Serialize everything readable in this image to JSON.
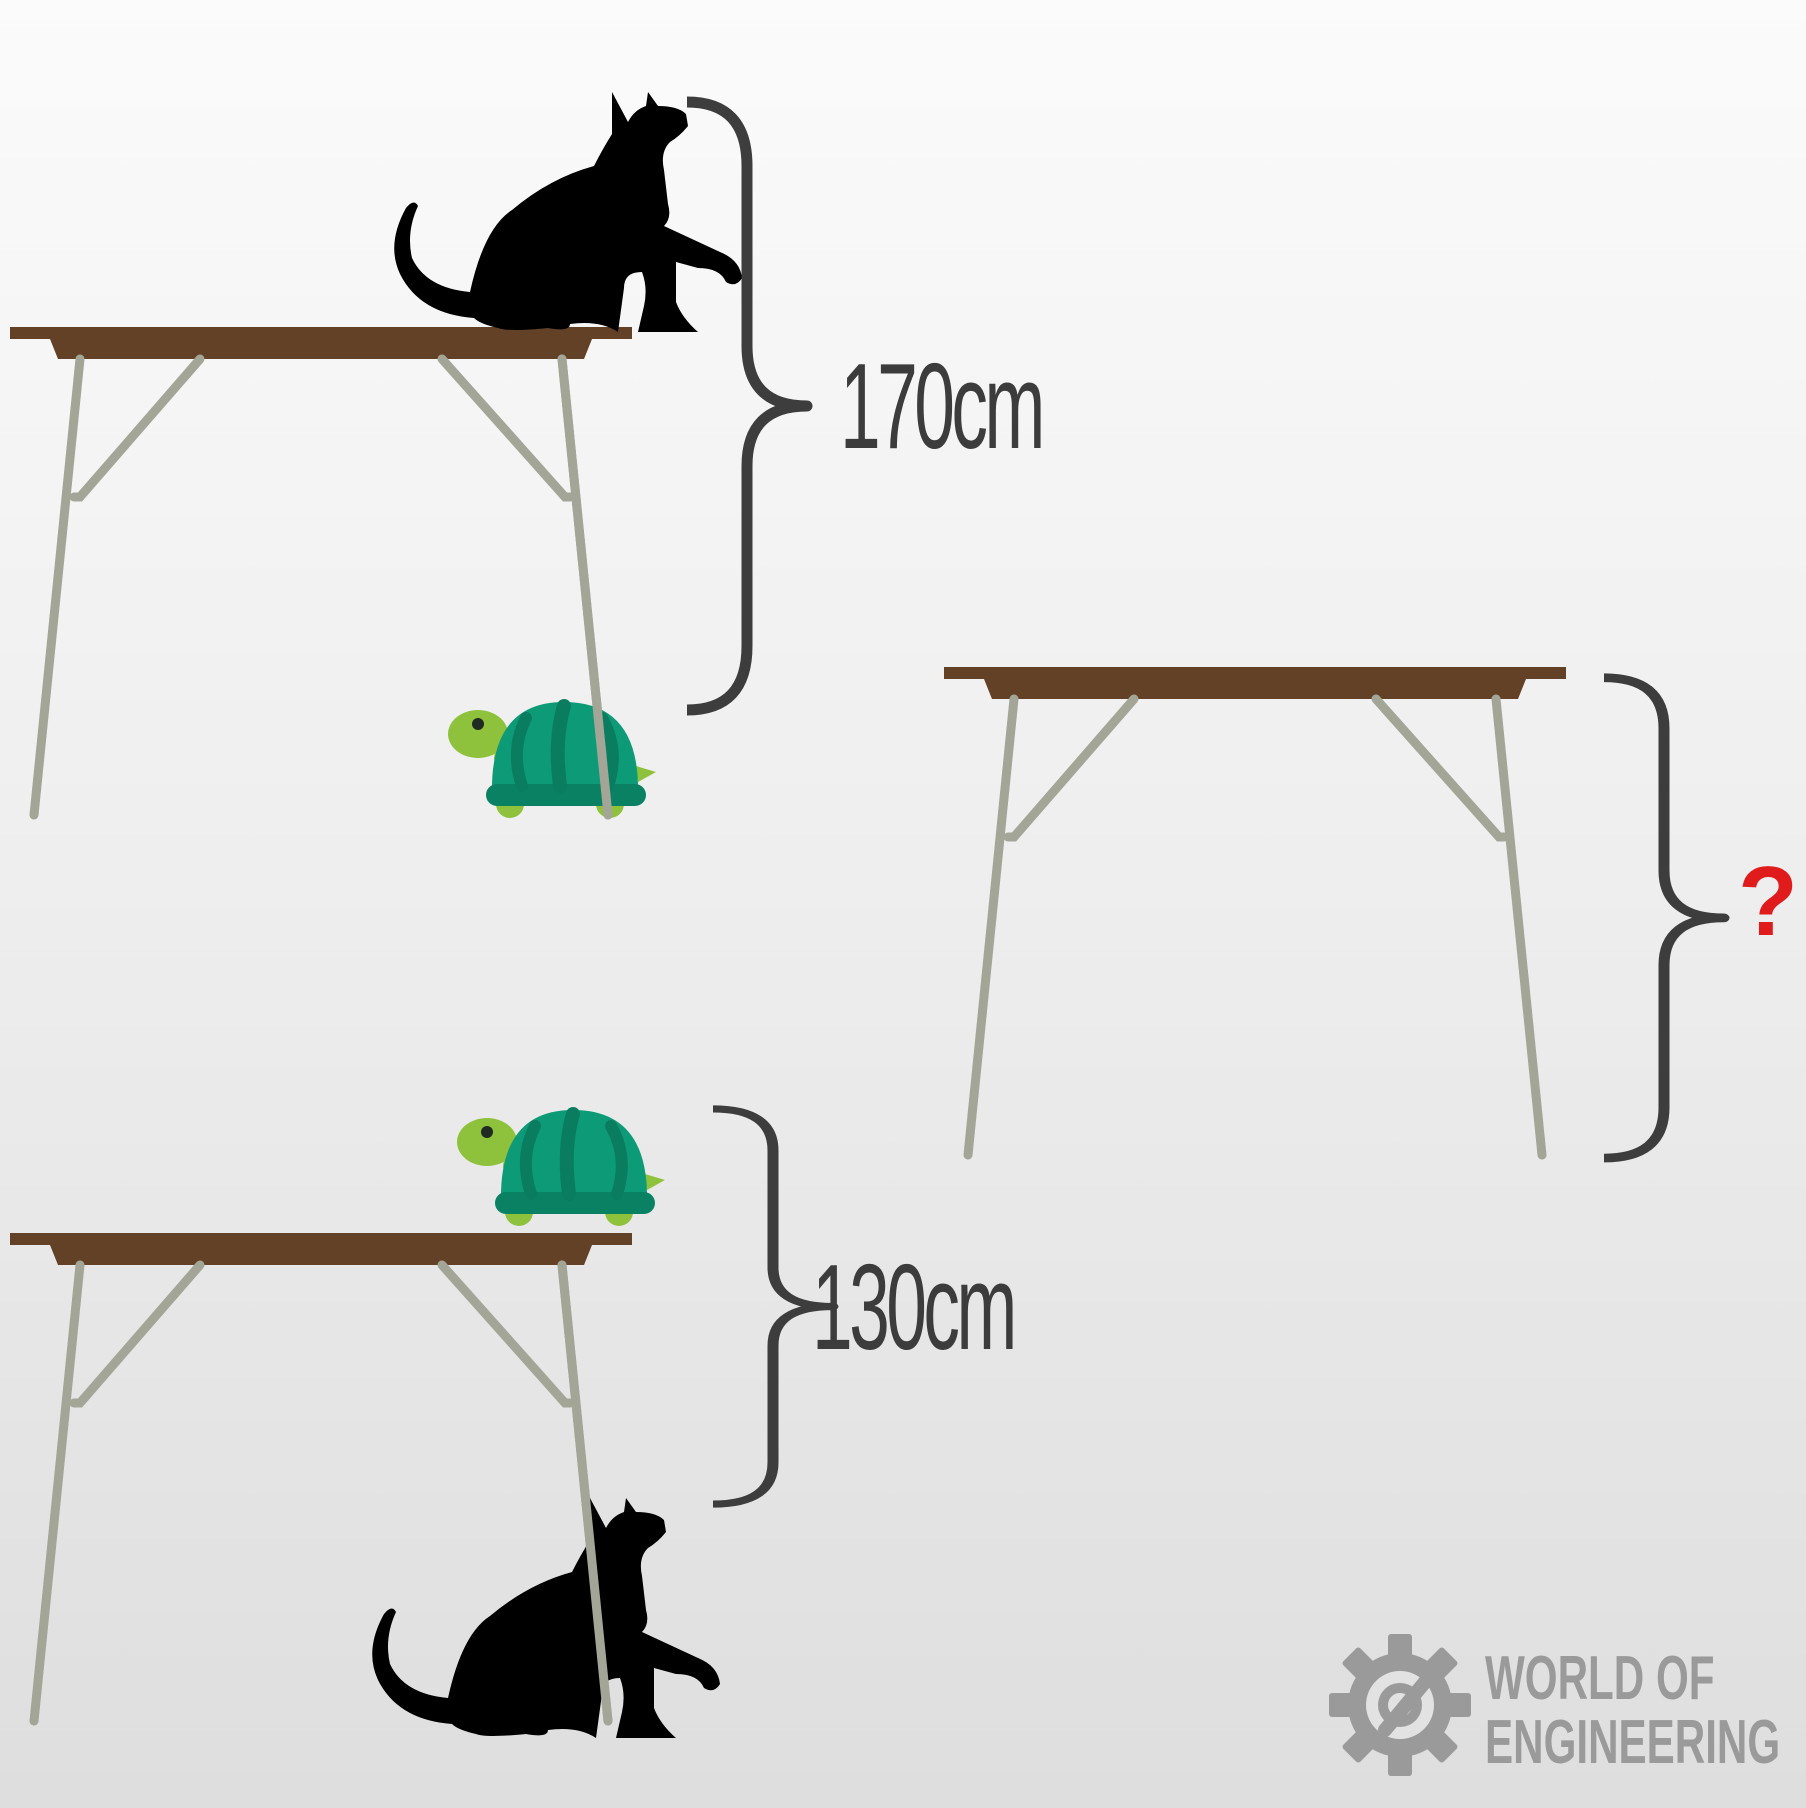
{
  "measurements": {
    "top_setup": "170cm",
    "bottom_setup": "130cm",
    "unknown": "?"
  },
  "logo": {
    "line1": "WORLD OF",
    "line2": "ENGINEERING"
  },
  "icons": [
    "cat-icon",
    "turtle-icon",
    "table-icon",
    "curly-brace-icon",
    "gear-icon"
  ],
  "colors": {
    "table_top": "#634127",
    "table_legs": "#a3a597",
    "brace": "#3d3d3d",
    "question_mark": "#e01b1b",
    "turtle_shell": "#0d9a77",
    "turtle_body": "#8fc23c",
    "cat": "#000000",
    "logo": "#9a9a9a"
  }
}
